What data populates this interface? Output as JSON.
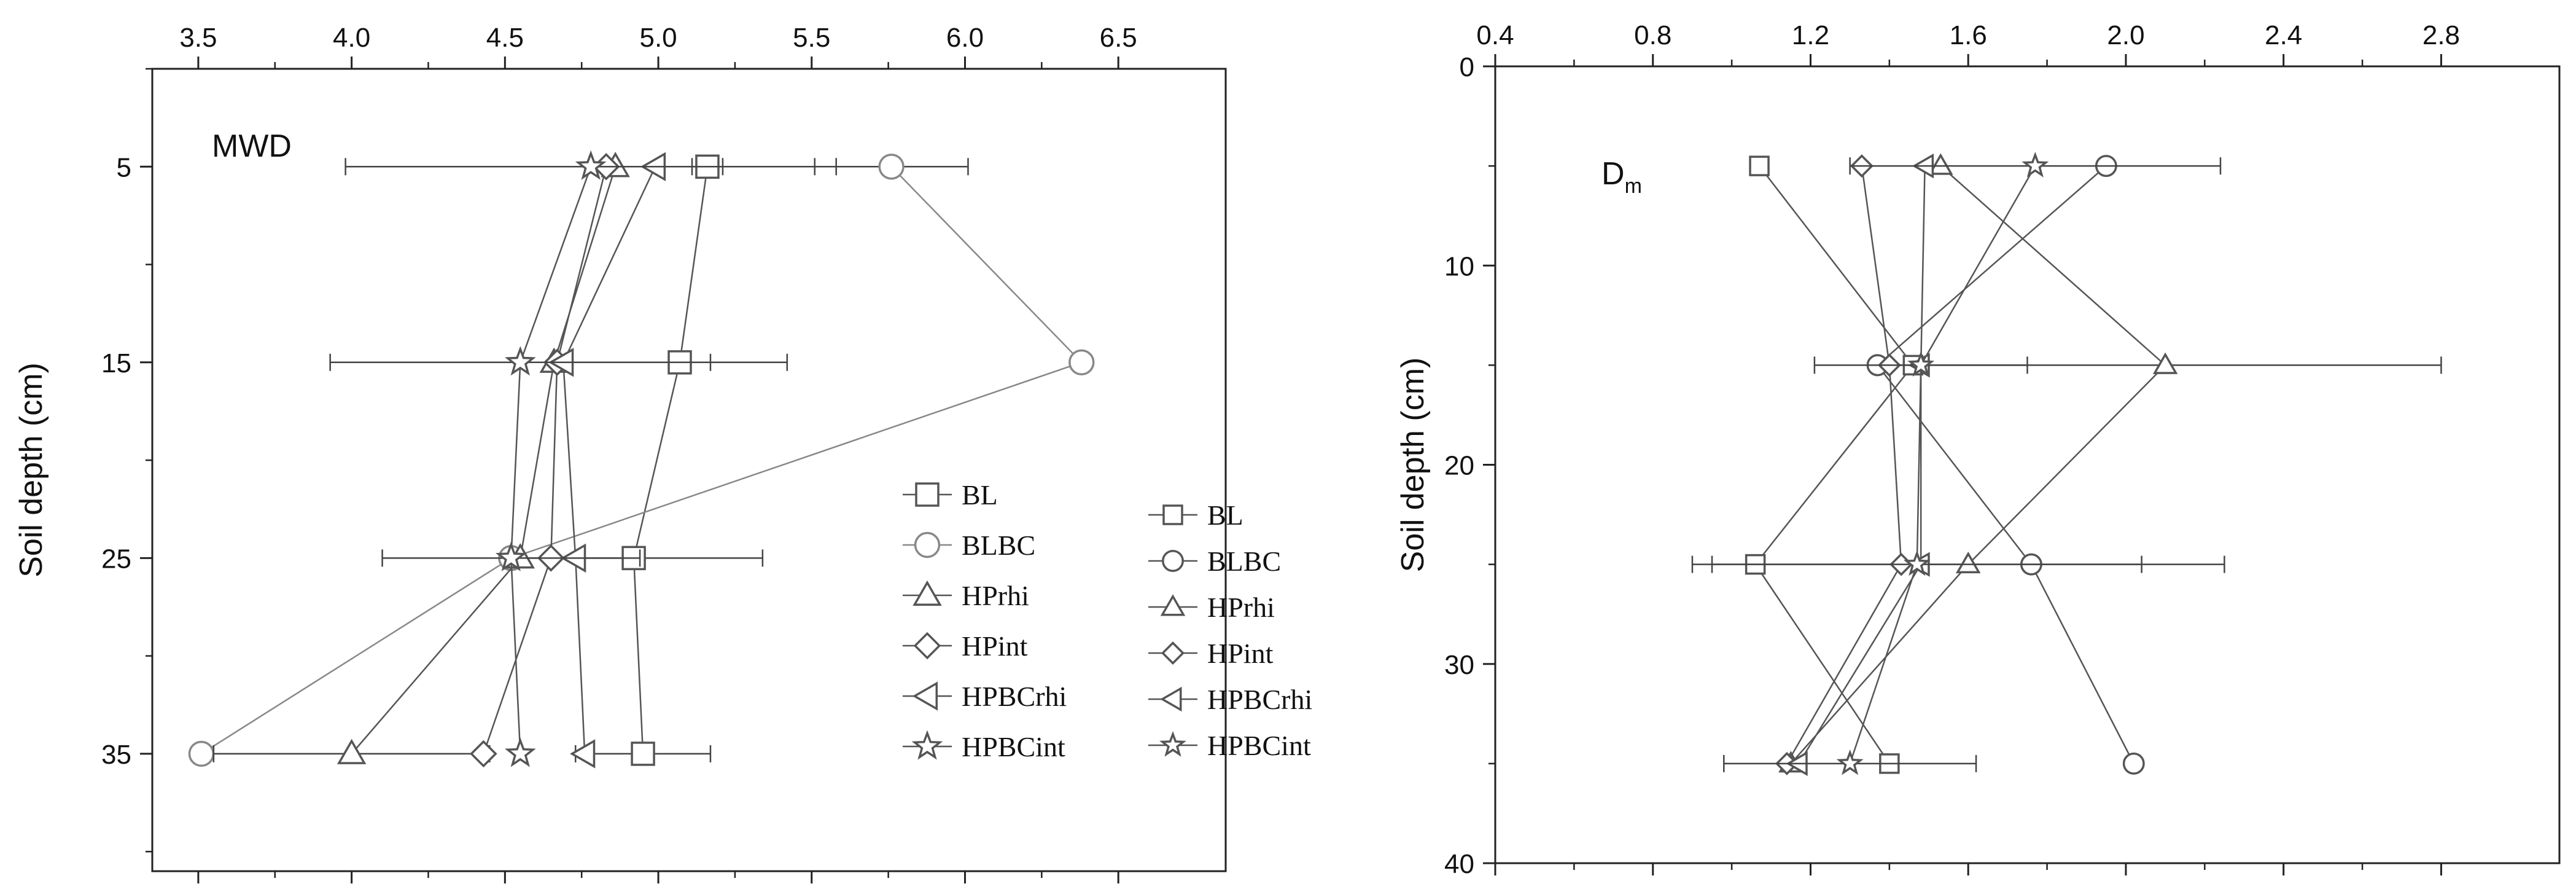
{
  "chart_data": [
    {
      "type": "scatter",
      "panel_label": "MWD",
      "ylabel": "Soil depth (cm)",
      "xlabel": "",
      "x_axis_position": "top",
      "y_inverted": true,
      "xlim": [
        3.35,
        6.85
      ],
      "ylim": [
        0,
        41
      ],
      "xticks": [
        3.5,
        4.0,
        4.5,
        5.0,
        5.5,
        6.0,
        6.5
      ],
      "xtick_labels": [
        "3.5",
        "4.0",
        "4.5",
        "5.0",
        "5.5",
        "6.0",
        "6.5"
      ],
      "yticks": [
        5,
        15,
        25,
        35
      ],
      "ytick_labels": [
        "5",
        "15",
        "25",
        "35"
      ],
      "depths": [
        5,
        15,
        25,
        35
      ],
      "legend_position": "right-middle",
      "series": [
        {
          "name": "BL",
          "marker": "square",
          "color": "#555555",
          "x": [
            5.16,
            5.07,
            4.92,
            4.95
          ],
          "err": [
            0.05,
            0.35,
            0.42,
            0.22
          ]
        },
        {
          "name": "BLBC",
          "marker": "circle",
          "color": "#888888",
          "x": [
            5.76,
            6.38,
            4.52,
            3.51
          ],
          "err": [
            0.25,
            0.0,
            0.0,
            0.0
          ]
        },
        {
          "name": "HPrhi",
          "marker": "triangle-up",
          "color": "#555555",
          "x": [
            4.86,
            4.66,
            4.55,
            4.0
          ],
          "err": [
            0.0,
            0.0,
            0.0,
            0.45
          ]
        },
        {
          "name": "HPint",
          "marker": "diamond",
          "color": "#555555",
          "x": [
            4.83,
            4.67,
            4.65,
            4.43
          ],
          "err": [
            0.0,
            0.0,
            0.0,
            0.0
          ]
        },
        {
          "name": "HPBCrhi",
          "marker": "triangle-left",
          "color": "#555555",
          "x": [
            4.99,
            4.69,
            4.73,
            4.76
          ],
          "err": [
            0.0,
            0.0,
            0.0,
            0.0
          ]
        },
        {
          "name": "HPBCint",
          "marker": "star",
          "color": "#555555",
          "x": [
            4.78,
            4.55,
            4.52,
            4.55
          ],
          "err": [
            0.8,
            0.62,
            0.42,
            0.0
          ]
        }
      ]
    },
    {
      "type": "scatter",
      "panel_label": "D",
      "panel_label_sub": "m",
      "ylabel": "Soil depth (cm)",
      "xlabel": "",
      "x_axis_position": "top",
      "y_inverted": true,
      "xlim": [
        0.4,
        3.1
      ],
      "ylim": [
        0,
        40
      ],
      "xticks": [
        0.4,
        0.8,
        1.2,
        1.6,
        2.0,
        2.4,
        2.8
      ],
      "xtick_labels": [
        "0.4",
        "0.8",
        "1.2",
        "1.6",
        "2.0",
        "2.4",
        "2.8"
      ],
      "yticks": [
        0,
        10,
        20,
        30,
        40
      ],
      "ytick_labels": [
        "0",
        "10",
        "20",
        "30",
        "40"
      ],
      "depths": [
        5,
        15,
        25,
        35
      ],
      "legend_position": "right-bottom",
      "series": [
        {
          "name": "BL",
          "marker": "square",
          "color": "#555555",
          "x": [
            1.07,
            1.46,
            1.06,
            1.4
          ],
          "err": [
            0.0,
            0.0,
            0.0,
            0.0
          ]
        },
        {
          "name": "BLBC",
          "marker": "circle",
          "color": "#555555",
          "x": [
            1.95,
            1.37,
            1.76,
            2.02
          ],
          "err": [
            0.0,
            0.0,
            0.0,
            0.0
          ]
        },
        {
          "name": "HPrhi",
          "marker": "triangle-up",
          "color": "#555555",
          "x": [
            1.53,
            2.1,
            1.6,
            1.15
          ],
          "err": [
            0.0,
            0.7,
            0.65,
            0.0
          ]
        },
        {
          "name": "HPint",
          "marker": "diamond",
          "color": "#555555",
          "x": [
            1.33,
            1.4,
            1.43,
            1.14
          ],
          "err": [
            0.0,
            0.0,
            0.0,
            0.0
          ]
        },
        {
          "name": "HPBCrhi",
          "marker": "triangle-left",
          "color": "#555555",
          "x": [
            1.49,
            1.48,
            1.48,
            1.17
          ],
          "err": [
            0.0,
            0.0,
            0.0,
            0.0
          ]
        },
        {
          "name": "HPBCint",
          "marker": "star",
          "color": "#555555",
          "x": [
            1.77,
            1.48,
            1.47,
            1.3
          ],
          "err": [
            0.47,
            0.27,
            0.57,
            0.32
          ]
        }
      ]
    }
  ]
}
